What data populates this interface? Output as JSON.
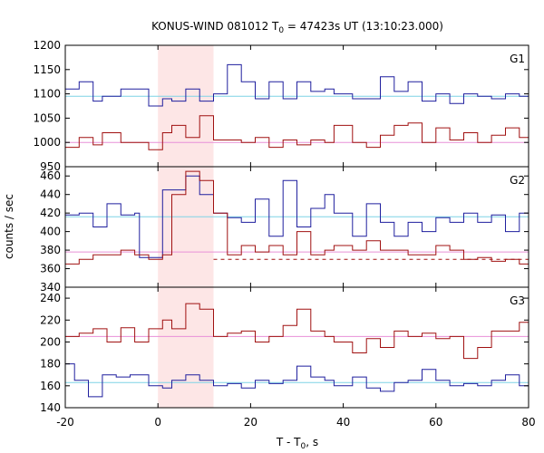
{
  "chart_data": {
    "type": "line",
    "title_main": "KONUS-WIND 081012 T",
    "title_sub": "0",
    "title_rest": " = 47423s UT (13:10:23.000)",
    "xlabel_main": "T - T",
    "xlabel_sub": "0",
    "xlabel_rest": ", s",
    "ylabel": "counts / sec",
    "xlim": [
      -20,
      80
    ],
    "xticks": [
      -20,
      0,
      20,
      40,
      60,
      80
    ],
    "shaded_interval": [
      0,
      12
    ],
    "colors": {
      "blue": "#1f1f9e",
      "red": "#a01010",
      "bg_blue": "#7fd4e6",
      "bg_pink": "#e890d8",
      "shade": "#fde6e6"
    },
    "panels": [
      {
        "label": "G1",
        "ylim": [
          950,
          1200
        ],
        "yticks": [
          950,
          1000,
          1050,
          1100,
          1150,
          1200
        ],
        "bg_blue": 1095,
        "bg_pink": 1000,
        "series": [
          {
            "color": "blue",
            "x": [
              -20,
              -17,
              -14,
              -12,
              -8,
              -2,
              1,
              3,
              6,
              9,
              12,
              15,
              18,
              21,
              24,
              27,
              30,
              33,
              36,
              38,
              42,
              45,
              48,
              51,
              54,
              57,
              60,
              63,
              66,
              69,
              72,
              75,
              78,
              80
            ],
            "y": [
              1110,
              1125,
              1085,
              1095,
              1110,
              1075,
              1090,
              1085,
              1110,
              1085,
              1100,
              1160,
              1125,
              1090,
              1125,
              1090,
              1125,
              1105,
              1110,
              1100,
              1090,
              1090,
              1135,
              1105,
              1125,
              1085,
              1100,
              1080,
              1100,
              1095,
              1090,
              1100,
              1095,
              1095
            ]
          },
          {
            "color": "red",
            "x": [
              -20,
              -17,
              -14,
              -12,
              -8,
              -2,
              1,
              3,
              6,
              9,
              12,
              15,
              18,
              21,
              24,
              27,
              30,
              33,
              36,
              38,
              42,
              45,
              48,
              51,
              54,
              57,
              60,
              63,
              66,
              69,
              72,
              75,
              78,
              80
            ],
            "y": [
              990,
              1010,
              995,
              1020,
              1000,
              985,
              1020,
              1035,
              1010,
              1055,
              1005,
              1005,
              1000,
              1010,
              990,
              1005,
              995,
              1005,
              1000,
              1035,
              1000,
              990,
              1015,
              1035,
              1040,
              1000,
              1030,
              1005,
              1020,
              1000,
              1015,
              1030,
              1010,
              1010
            ]
          }
        ]
      },
      {
        "label": "G2",
        "ylim": [
          340,
          470
        ],
        "yticks": [
          340,
          360,
          380,
          400,
          420,
          440,
          460
        ],
        "bg_blue": 416,
        "bg_pink": 378,
        "dashed_red": 370,
        "series": [
          {
            "color": "blue",
            "x": [
              -20,
              -17,
              -14,
              -11,
              -8,
              -5,
              -4,
              1,
              3,
              6,
              9,
              12,
              15,
              18,
              21,
              24,
              27,
              30,
              33,
              36,
              38,
              42,
              45,
              48,
              51,
              54,
              57,
              60,
              63,
              66,
              69,
              72,
              75,
              78,
              80
            ],
            "y": [
              418,
              420,
              405,
              430,
              418,
              420,
              372,
              445,
              445,
              460,
              440,
              420,
              415,
              410,
              435,
              395,
              455,
              405,
              425,
              440,
              420,
              395,
              430,
              410,
              395,
              410,
              400,
              415,
              410,
              420,
              410,
              418,
              400,
              420,
              420
            ]
          },
          {
            "color": "red",
            "x": [
              -20,
              -17,
              -14,
              -11,
              -8,
              -5,
              -2,
              1,
              3,
              6,
              9,
              12,
              15,
              18,
              21,
              24,
              27,
              30,
              33,
              36,
              38,
              42,
              45,
              48,
              51,
              54,
              57,
              60,
              63,
              66,
              69,
              72,
              75,
              78,
              80
            ],
            "y": [
              365,
              370,
              375,
              375,
              380,
              375,
              370,
              375,
              440,
              465,
              455,
              420,
              375,
              385,
              378,
              385,
              375,
              400,
              375,
              380,
              385,
              380,
              390,
              380,
              380,
              375,
              375,
              385,
              380,
              370,
              372,
              368,
              370,
              365,
              368
            ]
          }
        ]
      },
      {
        "label": "G3",
        "ylim": [
          140,
          250
        ],
        "yticks": [
          140,
          160,
          180,
          200,
          220,
          240
        ],
        "bg_blue": 163,
        "bg_pink": 205,
        "series": [
          {
            "color": "blue",
            "x": [
              -20,
              -18,
              -15,
              -12,
              -9,
              -6,
              -2,
              1,
              3,
              6,
              9,
              12,
              15,
              18,
              21,
              24,
              27,
              30,
              33,
              36,
              38,
              42,
              45,
              48,
              51,
              54,
              57,
              60,
              63,
              66,
              69,
              72,
              75,
              78,
              80
            ],
            "y": [
              180,
              165,
              150,
              170,
              168,
              170,
              160,
              158,
              165,
              170,
              165,
              160,
              162,
              158,
              165,
              162,
              165,
              178,
              168,
              165,
              160,
              168,
              158,
              155,
              163,
              165,
              175,
              165,
              160,
              162,
              160,
              165,
              170,
              160,
              160
            ]
          },
          {
            "color": "red",
            "x": [
              -20,
              -17,
              -14,
              -11,
              -8,
              -5,
              -2,
              1,
              3,
              6,
              9,
              12,
              15,
              18,
              21,
              24,
              27,
              30,
              33,
              36,
              38,
              42,
              45,
              48,
              51,
              54,
              57,
              60,
              63,
              66,
              69,
              72,
              75,
              78,
              80
            ],
            "y": [
              205,
              208,
              212,
              200,
              213,
              200,
              212,
              220,
              212,
              235,
              230,
              205,
              208,
              210,
              200,
              205,
              215,
              230,
              210,
              205,
              200,
              190,
              203,
              195,
              210,
              205,
              208,
              203,
              205,
              185,
              195,
              210,
              210,
              218,
              218
            ]
          }
        ]
      }
    ]
  }
}
